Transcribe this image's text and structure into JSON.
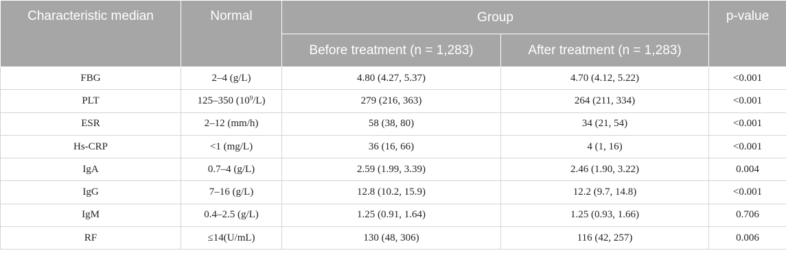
{
  "table": {
    "headers": {
      "characteristic": "Characteristic median",
      "normal": "Normal",
      "group": "Group",
      "p_value": "p-value",
      "before": "Before treatment (n = 1,283)",
      "after": "After treatment (n = 1,283)"
    },
    "rows": [
      {
        "characteristic": "FBG",
        "normal": "2–4 (g/L)",
        "before": "4.80 (4.27, 5.37)",
        "after": "4.70 (4.12, 5.22)",
        "p_value": "<0.001"
      },
      {
        "characteristic": "PLT",
        "normal_prefix": "125–350 (10",
        "normal_sup": "9",
        "normal_suffix": "/L)",
        "before": "279 (216, 363)",
        "after": "264 (211, 334)",
        "p_value": "<0.001"
      },
      {
        "characteristic": "ESR",
        "normal": "2–12 (mm/h)",
        "before": "58 (38, 80)",
        "after": "34 (21, 54)",
        "p_value": "<0.001"
      },
      {
        "characteristic": "Hs-CRP",
        "normal": "<1 (mg/L)",
        "before": "36 (16, 66)",
        "after": "4 (1, 16)",
        "p_value": "<0.001"
      },
      {
        "characteristic": "IgA",
        "normal": "0.7–4 (g/L)",
        "before": "2.59 (1.99, 3.39)",
        "after": "2.46 (1.90, 3.22)",
        "p_value": "0.004"
      },
      {
        "characteristic": "IgG",
        "normal": "7–16 (g/L)",
        "before": "12.8 (10.2, 15.9)",
        "after": "12.2 (9.7, 14.8)",
        "p_value": "<0.001"
      },
      {
        "characteristic": "IgM",
        "normal": "0.4–2.5 (g/L)",
        "before": "1.25 (0.91, 1.64)",
        "after": "1.25 (0.93, 1.66)",
        "p_value": "0.706"
      },
      {
        "characteristic": "RF",
        "normal": "≤14(U/mL)",
        "before": "130 (48, 306)",
        "after": "116 (42, 257)",
        "p_value": "0.006"
      }
    ]
  }
}
